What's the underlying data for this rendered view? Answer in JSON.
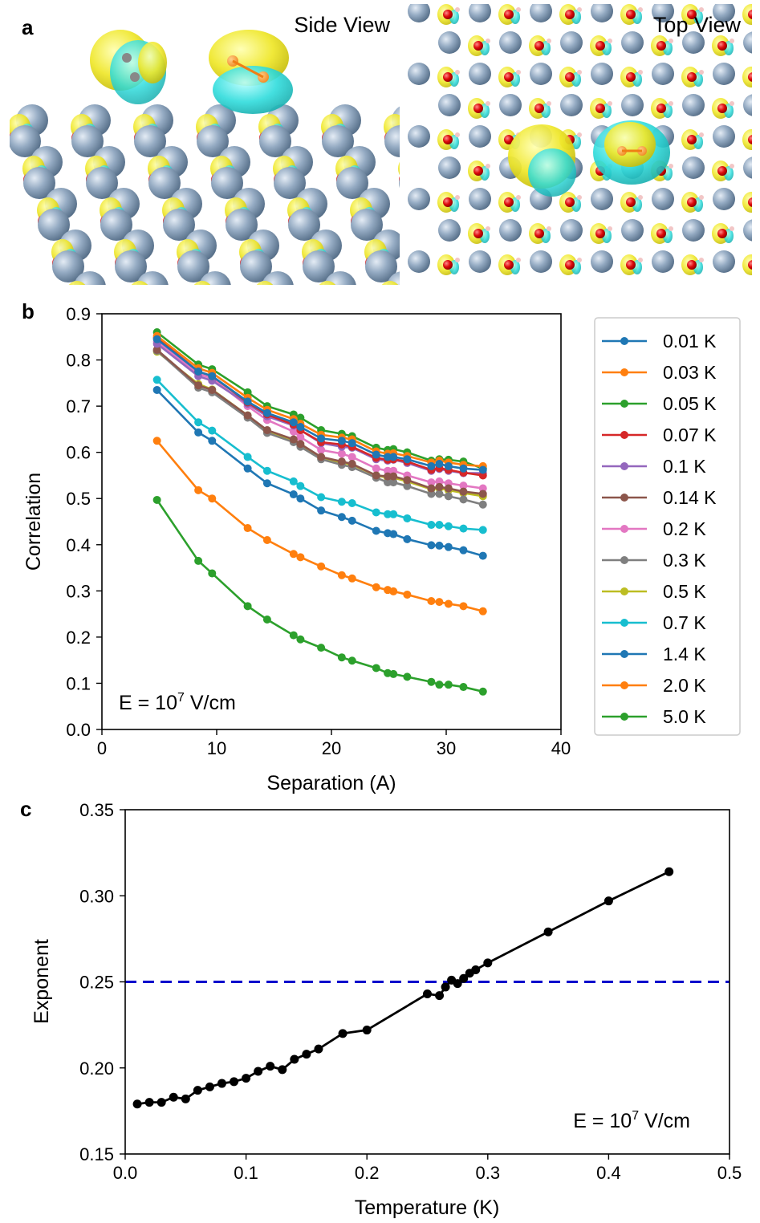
{
  "panel_a": {
    "letter": "a",
    "side_view_label": "Side View",
    "top_view_label": "Top View",
    "colors": {
      "atom_grey": "#8fa4bb",
      "atom_red": "#d40000",
      "iso_yellow": "#e8e21a",
      "iso_cyan": "#26d8d8",
      "atom_pink": "#f2c6c6"
    }
  },
  "chart_data": [
    {
      "panel": "b",
      "type": "line",
      "xlabel": "Separation (A)",
      "ylabel": "Correlation",
      "xlim": [
        0,
        40
      ],
      "ylim": [
        0.0,
        0.9
      ],
      "xticks": [
        0,
        10,
        20,
        30,
        40
      ],
      "yticks": [
        0.0,
        0.1,
        0.2,
        0.3,
        0.4,
        0.5,
        0.6,
        0.7,
        0.8,
        0.9
      ],
      "annotation": {
        "prefix": "E = 10",
        "exp": "7",
        "suffix": " V/cm"
      },
      "legend_location": "outside-right",
      "x": [
        4.8,
        8.4,
        9.6,
        12.7,
        14.4,
        16.7,
        17.3,
        19.1,
        20.9,
        21.8,
        23.9,
        24.9,
        25.4,
        26.6,
        28.7,
        29.4,
        30.2,
        31.5,
        33.2
      ],
      "series": [
        {
          "name": "0.01 K",
          "color": "#1f77b4",
          "values": [
            0.845,
            0.775,
            0.765,
            0.71,
            0.685,
            0.665,
            0.655,
            0.63,
            0.625,
            0.62,
            0.595,
            0.59,
            0.59,
            0.585,
            0.57,
            0.575,
            0.57,
            0.565,
            0.562
          ]
        },
        {
          "name": "0.03 K",
          "color": "#ff7f0e",
          "values": [
            0.852,
            0.782,
            0.772,
            0.718,
            0.692,
            0.672,
            0.662,
            0.638,
            0.632,
            0.628,
            0.602,
            0.597,
            0.598,
            0.592,
            0.578,
            0.582,
            0.578,
            0.573,
            0.57
          ]
        },
        {
          "name": "0.05 K",
          "color": "#2ca02c",
          "values": [
            0.86,
            0.79,
            0.78,
            0.73,
            0.7,
            0.682,
            0.675,
            0.648,
            0.64,
            0.635,
            0.61,
            0.605,
            0.607,
            0.6,
            0.582,
            0.585,
            0.584,
            0.58,
            0.565
          ]
        },
        {
          "name": "0.07 K",
          "color": "#d62728",
          "values": [
            0.848,
            0.775,
            0.765,
            0.708,
            0.682,
            0.66,
            0.648,
            0.622,
            0.617,
            0.612,
            0.588,
            0.584,
            0.585,
            0.58,
            0.562,
            0.566,
            0.562,
            0.556,
            0.55
          ]
        },
        {
          "name": "0.1 K",
          "color": "#9467bd",
          "values": [
            0.835,
            0.765,
            0.755,
            0.705,
            0.678,
            0.658,
            0.648,
            0.62,
            0.612,
            0.61,
            0.585,
            0.582,
            0.584,
            0.577,
            0.56,
            0.564,
            0.56,
            0.555,
            0.555
          ]
        },
        {
          "name": "0.14 K",
          "color": "#8c564b",
          "values": [
            0.822,
            0.745,
            0.735,
            0.68,
            0.648,
            0.628,
            0.618,
            0.59,
            0.58,
            0.575,
            0.55,
            0.548,
            0.548,
            0.54,
            0.522,
            0.525,
            0.522,
            0.515,
            0.51
          ]
        },
        {
          "name": "0.2 K",
          "color": "#e377c2",
          "values": [
            0.84,
            0.77,
            0.76,
            0.7,
            0.67,
            0.645,
            0.633,
            0.605,
            0.597,
            0.59,
            0.565,
            0.56,
            0.56,
            0.55,
            0.535,
            0.537,
            0.533,
            0.528,
            0.522
          ]
        },
        {
          "name": "0.3 K",
          "color": "#7f7f7f",
          "values": [
            0.82,
            0.74,
            0.73,
            0.675,
            0.642,
            0.622,
            0.612,
            0.585,
            0.573,
            0.568,
            0.545,
            0.535,
            0.535,
            0.527,
            0.51,
            0.51,
            0.505,
            0.498,
            0.487
          ]
        },
        {
          "name": "0.5 K",
          "color": "#bcbd22",
          "values": [
            0.818,
            0.748,
            0.736,
            0.68,
            0.646,
            0.625,
            0.615,
            0.588,
            0.578,
            0.573,
            0.55,
            0.545,
            0.545,
            0.537,
            0.52,
            0.522,
            0.518,
            0.512,
            0.505
          ]
        },
        {
          "name": "0.7 K",
          "color": "#17becf",
          "values": [
            0.757,
            0.665,
            0.647,
            0.59,
            0.56,
            0.537,
            0.527,
            0.503,
            0.493,
            0.49,
            0.47,
            0.466,
            0.466,
            0.457,
            0.443,
            0.443,
            0.44,
            0.435,
            0.432
          ]
        },
        {
          "name": "1.4 K",
          "color": "#1f77b4",
          "values": [
            0.735,
            0.643,
            0.625,
            0.565,
            0.533,
            0.509,
            0.5,
            0.474,
            0.46,
            0.452,
            0.43,
            0.425,
            0.423,
            0.412,
            0.399,
            0.398,
            0.395,
            0.388,
            0.376
          ]
        },
        {
          "name": "2.0 K",
          "color": "#ff7f0e",
          "values": [
            0.625,
            0.518,
            0.5,
            0.436,
            0.41,
            0.38,
            0.373,
            0.353,
            0.334,
            0.327,
            0.308,
            0.302,
            0.299,
            0.292,
            0.278,
            0.276,
            0.272,
            0.267,
            0.256
          ]
        },
        {
          "name": "5.0 K",
          "color": "#2ca02c",
          "values": [
            0.497,
            0.365,
            0.338,
            0.267,
            0.238,
            0.204,
            0.195,
            0.177,
            0.156,
            0.149,
            0.133,
            0.122,
            0.12,
            0.114,
            0.103,
            0.097,
            0.097,
            0.092,
            0.082
          ]
        }
      ]
    },
    {
      "panel": "c",
      "type": "line",
      "xlabel": "Temperature (K)",
      "ylabel": "Exponent",
      "xlim": [
        0.0,
        0.5
      ],
      "ylim": [
        0.15,
        0.35
      ],
      "xticks": [
        "0.0",
        "0.1",
        "0.2",
        "0.3",
        "0.4",
        "0.5"
      ],
      "yticks": [
        "0.15",
        "0.20",
        "0.25",
        "0.30",
        "0.35"
      ],
      "annotation": {
        "prefix": "E = 10",
        "exp": "7",
        "suffix": " V/cm"
      },
      "reference_line": {
        "y": 0.25,
        "color": "#0000cc",
        "style": "dashed"
      },
      "series": [
        {
          "name": "Exponent",
          "color": "#000000",
          "x": [
            0.01,
            0.02,
            0.03,
            0.04,
            0.05,
            0.06,
            0.07,
            0.08,
            0.09,
            0.1,
            0.11,
            0.12,
            0.13,
            0.14,
            0.15,
            0.16,
            0.18,
            0.2,
            0.25,
            0.26,
            0.265,
            0.27,
            0.275,
            0.28,
            0.285,
            0.29,
            0.3,
            0.35,
            0.4,
            0.45
          ],
          "y": [
            0.179,
            0.18,
            0.18,
            0.183,
            0.182,
            0.187,
            0.189,
            0.191,
            0.192,
            0.194,
            0.198,
            0.201,
            0.199,
            0.205,
            0.208,
            0.211,
            0.22,
            0.222,
            0.243,
            0.242,
            0.247,
            0.251,
            0.249,
            0.252,
            0.255,
            0.257,
            0.261,
            0.279,
            0.297,
            0.314
          ]
        }
      ]
    }
  ]
}
